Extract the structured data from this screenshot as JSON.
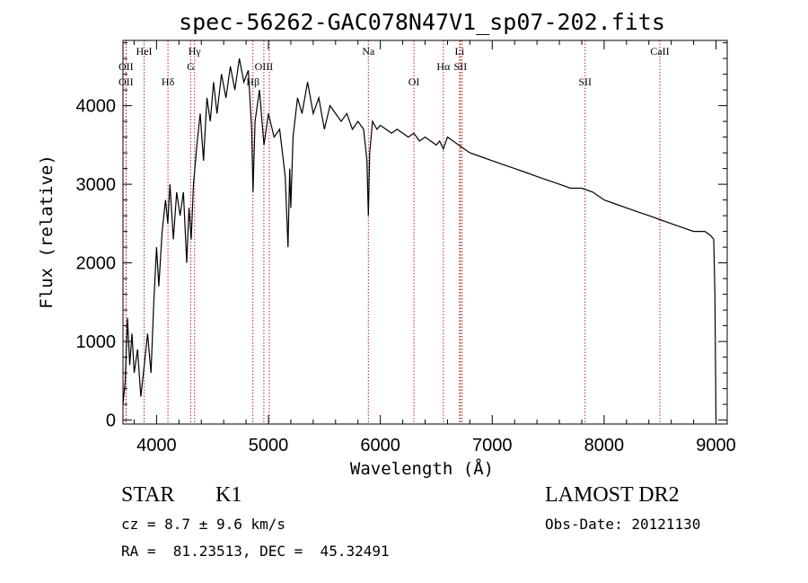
{
  "chart_data": {
    "type": "line",
    "title": "spec-56262-GAC078N47V1_sp07-202.fits",
    "xlabel": "Wavelength (Å)",
    "ylabel": "Flux (relative)",
    "xlim": [
      3700,
      9100
    ],
    "ylim": [
      -50,
      4830
    ],
    "x_ticks": [
      4000,
      5000,
      6000,
      7000,
      8000,
      9000
    ],
    "y_ticks": [
      0,
      1000,
      2000,
      3000,
      4000
    ],
    "grid": false,
    "series": [
      {
        "x": [
          3700,
          3720,
          3740,
          3760,
          3780,
          3800,
          3830,
          3860,
          3890,
          3920,
          3950,
          3975,
          4000,
          4020,
          4050,
          4080,
          4100,
          4120,
          4150,
          4180,
          4210,
          4240,
          4270,
          4290,
          4310,
          4330,
          4360,
          4390,
          4420,
          4450,
          4480,
          4510,
          4540,
          4580,
          4620,
          4660,
          4700,
          4740,
          4780,
          4820,
          4850,
          4862,
          4880,
          4920,
          4960,
          5000,
          5050,
          5100,
          5150,
          5175,
          5190,
          5200,
          5220,
          5260,
          5300,
          5350,
          5400,
          5450,
          5500,
          5550,
          5600,
          5650,
          5700,
          5750,
          5800,
          5850,
          5880,
          5893,
          5905,
          5930,
          5970,
          6000,
          6050,
          6100,
          6150,
          6200,
          6250,
          6300,
          6350,
          6400,
          6450,
          6500,
          6530,
          6563,
          6600,
          6650,
          6700,
          6750,
          6800,
          6900,
          7000,
          7100,
          7200,
          7300,
          7400,
          7500,
          7600,
          7700,
          7800,
          7900,
          8000,
          8100,
          8200,
          8300,
          8400,
          8500,
          8600,
          8700,
          8800,
          8900,
          8950,
          8980,
          8990,
          9000
        ],
        "y": [
          200,
          500,
          1300,
          700,
          1100,
          600,
          900,
          300,
          700,
          1100,
          600,
          1500,
          2200,
          1700,
          2400,
          2800,
          2500,
          3000,
          2300,
          2900,
          2600,
          2900,
          2000,
          2700,
          2300,
          3000,
          3500,
          3900,
          3300,
          4100,
          3800,
          4300,
          3900,
          4400,
          4100,
          4500,
          4200,
          4600,
          4300,
          4450,
          3700,
          2900,
          3800,
          4200,
          3500,
          3900,
          3600,
          3700,
          3100,
          2200,
          3200,
          2700,
          3600,
          4100,
          3900,
          4300,
          3900,
          4100,
          3700,
          4000,
          3900,
          3800,
          3900,
          3700,
          3800,
          3700,
          3300,
          2600,
          3400,
          3800,
          3700,
          3750,
          3700,
          3650,
          3700,
          3650,
          3600,
          3650,
          3550,
          3600,
          3550,
          3500,
          3550,
          3450,
          3600,
          3550,
          3500,
          3450,
          3400,
          3350,
          3300,
          3250,
          3200,
          3150,
          3100,
          3050,
          3000,
          2950,
          2950,
          2900,
          2800,
          2750,
          2700,
          2650,
          2600,
          2550,
          2500,
          2450,
          2400,
          2400,
          2350,
          2300,
          1600,
          0
        ]
      }
    ],
    "lines": [
      {
        "x": 3727,
        "label": "OII",
        "row": 2
      },
      {
        "x": 3727,
        "label": "OII",
        "row": 1
      },
      {
        "x": 3889,
        "label": "HeI",
        "row": 0
      },
      {
        "x": 4102,
        "label": "Hδ",
        "row": 2
      },
      {
        "x": 4305,
        "label": "G",
        "row": 1
      },
      {
        "x": 4340,
        "label": "Hγ",
        "row": 0
      },
      {
        "x": 4861,
        "label": "Hβ",
        "row": 2
      },
      {
        "x": 4959,
        "label": "OIII",
        "row": 1
      },
      {
        "x": 5007,
        "label": "",
        "row": 1
      },
      {
        "x": 5893,
        "label": "Na",
        "row": 0
      },
      {
        "x": 6300,
        "label": "OI",
        "row": 2
      },
      {
        "x": 6563,
        "label": "Hα",
        "row": 1
      },
      {
        "x": 6708,
        "label": "Li",
        "row": 0
      },
      {
        "x": 6716,
        "label": "SII",
        "row": 1
      },
      {
        "x": 6731,
        "label": "",
        "row": 1
      },
      {
        "x": 7830,
        "label": "SII",
        "row": 2
      },
      {
        "x": 8498,
        "label": "CaII",
        "row": 0
      }
    ]
  },
  "info": {
    "object_class": "STAR",
    "subclass": "K1",
    "survey": "LAMOST DR2",
    "redshift": "cz = 8.7 ± 9.6 km/s",
    "obs_date": "Obs-Date: 20121130",
    "coords": "RA =  81.23513, DEC =  45.32491"
  },
  "colors": {
    "spectrum": "#000000",
    "emission_line": "#b22222",
    "axes": "#000000"
  }
}
